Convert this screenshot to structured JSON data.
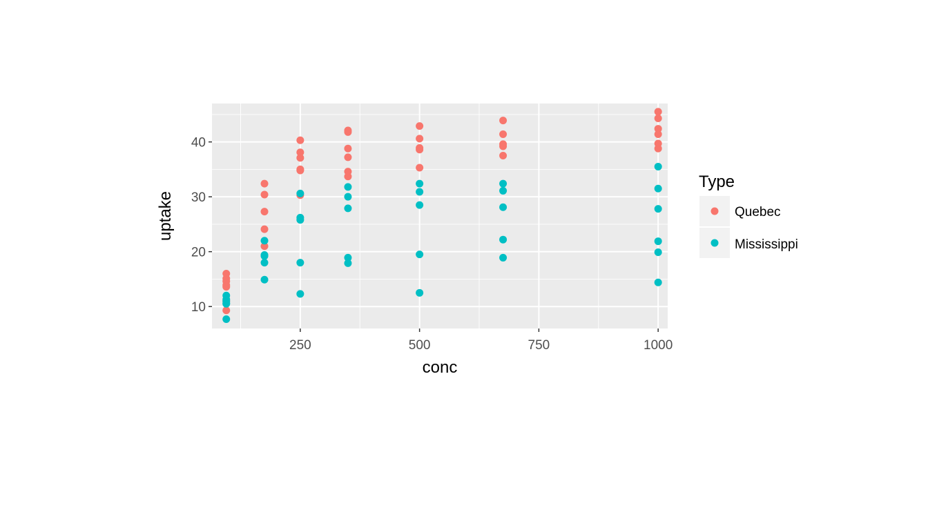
{
  "chart_data": {
    "type": "scatter",
    "xlabel": "conc",
    "ylabel": "uptake",
    "xlim": [
      65,
      1020
    ],
    "ylim": [
      6,
      47
    ],
    "x_ticks": [
      250,
      500,
      750,
      1000
    ],
    "y_ticks": [
      10,
      20,
      30,
      40
    ],
    "x_tick_labels": [
      "250",
      "500",
      "750",
      "1000"
    ],
    "y_tick_labels": [
      "10",
      "20",
      "30",
      "40"
    ],
    "grid": true,
    "legend": {
      "title": "Type",
      "placement": "right"
    },
    "colors": {
      "Quebec": "#F8766D",
      "Mississippi": "#00BFC4",
      "panel": "#EBEBEB",
      "grid": "#FFFFFF"
    },
    "series": [
      {
        "name": "Quebec",
        "x": [
          95,
          95,
          95,
          95,
          95,
          95,
          95,
          175,
          175,
          175,
          175,
          175,
          250,
          250,
          250,
          250,
          250,
          250,
          350,
          350,
          350,
          350,
          350,
          350,
          500,
          500,
          500,
          500,
          500,
          675,
          675,
          675,
          675,
          675,
          1000,
          1000,
          1000,
          1000,
          1000,
          1000
        ],
        "y": [
          16.0,
          15.1,
          14.6,
          13.9,
          13.6,
          9.3,
          11.0,
          32.4,
          30.4,
          27.3,
          24.1,
          21.0,
          40.3,
          38.1,
          37.1,
          35.0,
          34.8,
          30.3,
          42.1,
          41.8,
          38.8,
          37.2,
          34.6,
          33.7,
          42.9,
          40.6,
          38.9,
          38.6,
          35.3,
          43.9,
          41.4,
          39.6,
          39.2,
          37.5,
          45.5,
          44.3,
          42.4,
          41.4,
          39.7,
          38.8
        ]
      },
      {
        "name": "Mississippi",
        "x": [
          95,
          95,
          95,
          95,
          95,
          95,
          175,
          175,
          175,
          175,
          175,
          250,
          250,
          250,
          250,
          250,
          350,
          350,
          350,
          350,
          350,
          500,
          500,
          500,
          500,
          500,
          675,
          675,
          675,
          675,
          675,
          1000,
          1000,
          1000,
          1000,
          1000,
          1000
        ],
        "y": [
          12.0,
          11.3,
          10.6,
          11.0,
          7.7,
          10.5,
          22.0,
          19.4,
          19.2,
          18.0,
          14.9,
          30.6,
          26.2,
          25.8,
          18.0,
          12.3,
          31.8,
          30.0,
          27.9,
          18.9,
          17.9,
          32.4,
          30.9,
          28.5,
          19.5,
          12.5,
          32.4,
          31.1,
          28.1,
          22.2,
          18.9,
          35.5,
          31.5,
          27.8,
          21.9,
          19.9,
          14.4
        ]
      }
    ]
  }
}
